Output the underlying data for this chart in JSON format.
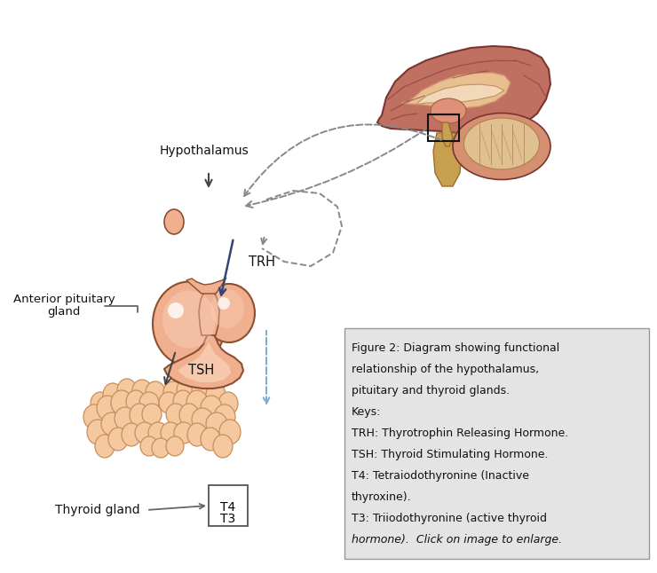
{
  "bg_color": "#ffffff",
  "caption_box_color": "#e4e4e4",
  "caption_box_border": "#999999",
  "caption_lines": [
    [
      "Figure 2: Diagram showing functional",
      false
    ],
    [
      "relationship of the hypothalamus,",
      false
    ],
    [
      "pituitary and thyroid glands.",
      false
    ],
    [
      "Keys:",
      false
    ],
    [
      "TRH: Thyrotrophin Releasing Hormone.",
      false
    ],
    [
      "TSH: Thyroid Stimulating Hormone.",
      false
    ],
    [
      "T4: Tetraiodothyronine (Inactive",
      false
    ],
    [
      "thyroxine).",
      false
    ],
    [
      "T3: Triiodothyronine (active thyroid",
      false
    ],
    [
      "hormone).  Click on image to enlarge.",
      true
    ]
  ],
  "caption_fontsize": 9.0,
  "label_hypothalamus": "Hypothalamus",
  "label_anterior_1": "Anterior pituitary",
  "label_anterior_2": "gland",
  "label_tsh": "TSH",
  "label_trh": "TRH",
  "label_thyroid": "Thyroid gland",
  "skin_color": "#f0b090",
  "skin_light": "#fad5bc",
  "skin_dark": "#c07850",
  "skin_edge": "#8b5030",
  "thyroid_fill": "#f5c8a0",
  "thyroid_edge": "#c8905a",
  "arrow_color": "#444444",
  "feedback_color": "#7ab0d8",
  "dashed_color": "#888888",
  "brain_outer": "#c07060",
  "brain_mid": "#d49070",
  "brain_inner": "#e8c090",
  "brain_edge": "#7a3530",
  "cerebellum_fill": "#e0c090",
  "stem_fill": "#c8a050",
  "stem_edge": "#9a7030"
}
